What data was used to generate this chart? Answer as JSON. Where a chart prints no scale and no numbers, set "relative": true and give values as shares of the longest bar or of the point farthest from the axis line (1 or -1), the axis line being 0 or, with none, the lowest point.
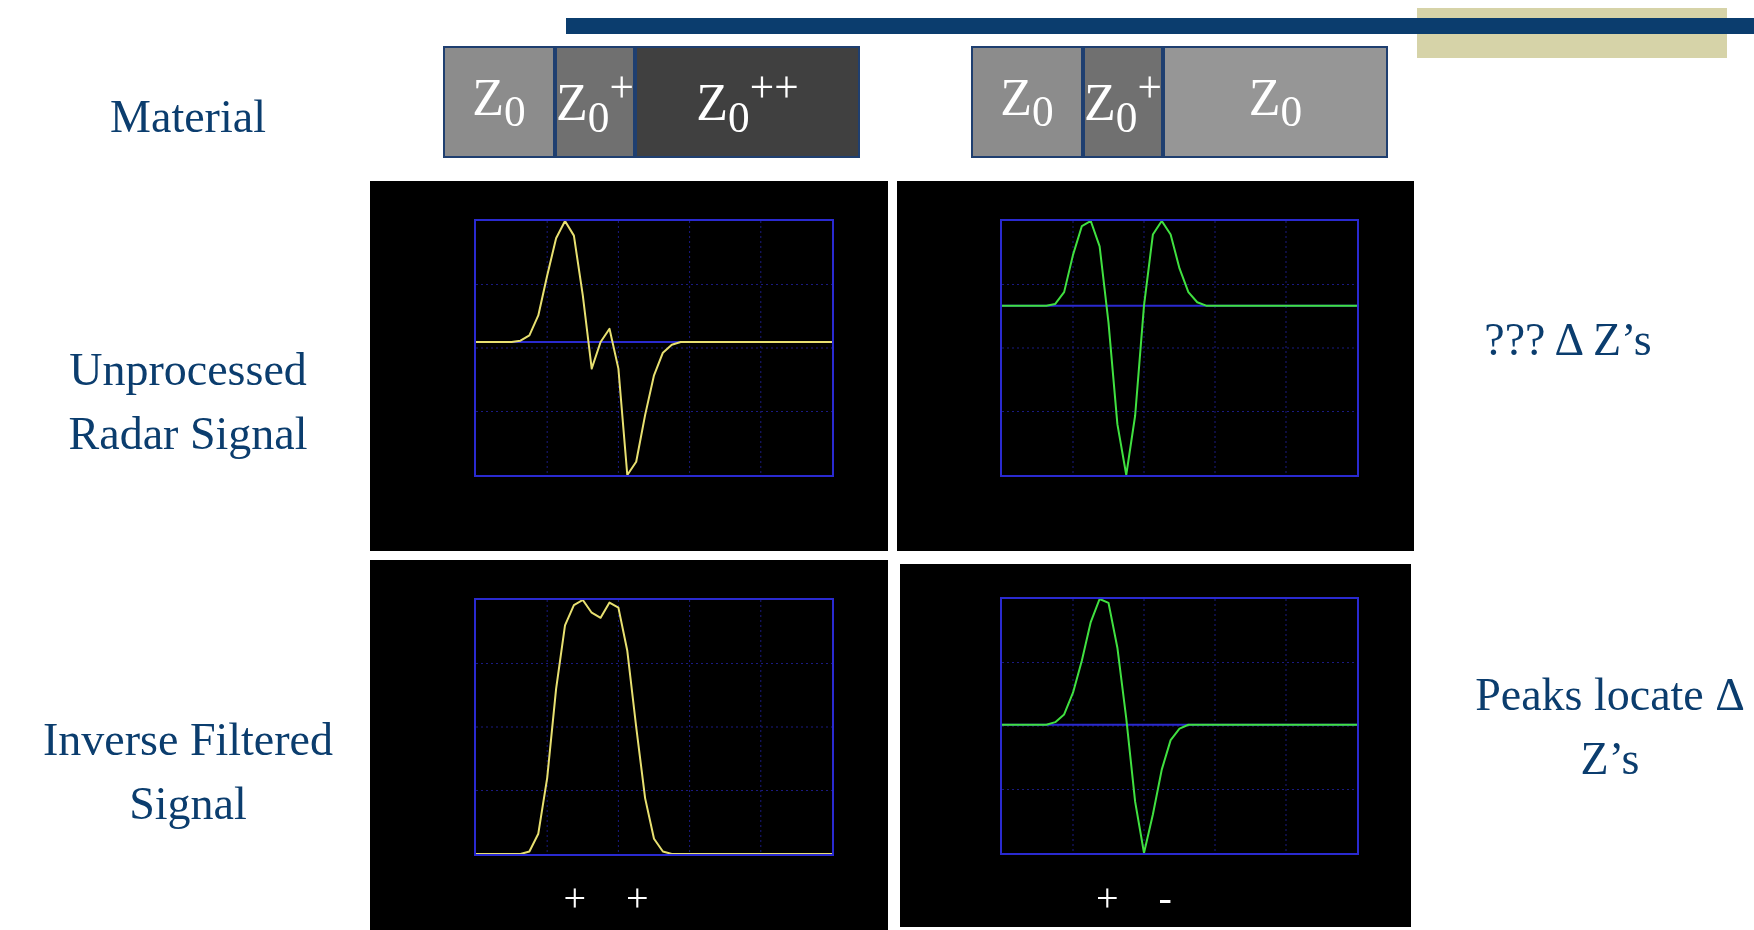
{
  "chart_data": [
    {
      "type": "other",
      "title": "Material",
      "categories": [
        "Z$_{0}$",
        "Z$_{0}$$^{+}$",
        "Z$_{0}$$^{++}$",
        "Z$_{0}$",
        "Z$_{0}$$^{+}$",
        "Z$_{0}$"
      ],
      "colors": [
        "#8c8c8c",
        "#707070",
        "#404040",
        "#8c8c8c",
        "#707070",
        "#969696"
      ]
    },
    {
      "type": "line",
      "relative": true,
      "ylabel": "Unprocessed Radar Signal",
      "grid": true,
      "tick_labels": false,
      "categories": [
        null,
        null,
        null,
        null,
        null,
        null,
        null,
        null,
        null,
        null,
        null,
        null,
        null,
        null,
        null,
        null,
        null,
        null,
        null,
        null,
        null,
        null,
        null,
        null,
        null,
        null,
        null,
        null,
        null,
        null,
        null,
        null,
        null,
        null,
        null,
        null,
        null,
        null,
        null,
        null,
        null
      ],
      "series": [
        {
          "color": "#e8e070",
          "values": [
            0,
            0,
            0,
            0,
            0,
            0.01,
            0.05,
            0.2,
            0.5,
            0.78,
            0.91,
            0.8,
            0.35,
            -0.2,
            0,
            0.1,
            -0.2,
            -1,
            -0.9,
            -0.55,
            -0.25,
            -0.08,
            -0.02,
            0,
            0,
            0,
            0,
            0,
            0,
            0,
            0,
            0,
            0,
            0,
            0,
            0,
            0,
            0,
            0,
            0,
            0
          ]
        }
      ],
      "ref_lines": [
        {
          "axis": "y",
          "value": 0,
          "color": "#2a2ad0"
        }
      ]
    },
    {
      "type": "line",
      "relative": true,
      "grid": true,
      "tick_labels": false,
      "annotations": [
        "??? Δ Z’s"
      ],
      "categories": [
        null,
        null,
        null,
        null,
        null,
        null,
        null,
        null,
        null,
        null,
        null,
        null,
        null,
        null,
        null,
        null,
        null,
        null,
        null,
        null,
        null,
        null,
        null,
        null,
        null,
        null,
        null,
        null,
        null,
        null,
        null,
        null,
        null,
        null,
        null,
        null,
        null,
        null,
        null,
        null,
        null
      ],
      "series": [
        {
          "color": "#40e040",
          "values": [
            0,
            0,
            0,
            0,
            0,
            0,
            0.01,
            0.08,
            0.3,
            0.47,
            0.5,
            0.35,
            -0.1,
            -0.7,
            -1,
            -0.65,
            0,
            0.42,
            0.5,
            0.42,
            0.22,
            0.08,
            0.02,
            0,
            0,
            0,
            0,
            0,
            0,
            0,
            0,
            0,
            0,
            0,
            0,
            0,
            0,
            0,
            0,
            0,
            0
          ]
        }
      ],
      "ref_lines": [
        {
          "axis": "y",
          "value": 0,
          "color": "#2a2ad0"
        }
      ]
    },
    {
      "type": "line",
      "relative": true,
      "ylabel": "Inverse Filtered Signal",
      "grid": true,
      "tick_labels": false,
      "annotations": [
        "+ +"
      ],
      "categories": [
        null,
        null,
        null,
        null,
        null,
        null,
        null,
        null,
        null,
        null,
        null,
        null,
        null,
        null,
        null,
        null,
        null,
        null,
        null,
        null,
        null,
        null,
        null,
        null,
        null,
        null,
        null,
        null,
        null,
        null,
        null,
        null,
        null,
        null,
        null,
        null,
        null,
        null,
        null,
        null,
        null
      ],
      "series": [
        {
          "color": "#e8e070",
          "values": [
            0,
            0,
            0,
            0,
            0,
            0,
            0.01,
            0.08,
            0.3,
            0.65,
            0.9,
            0.98,
            1,
            0.95,
            0.93,
            0.99,
            0.97,
            0.8,
            0.5,
            0.22,
            0.06,
            0.01,
            0,
            0,
            0,
            0,
            0,
            0,
            0,
            0,
            0,
            0,
            0,
            0,
            0,
            0,
            0,
            0,
            0,
            0,
            0
          ]
        }
      ]
    },
    {
      "type": "line",
      "relative": true,
      "grid": true,
      "tick_labels": false,
      "annotations": [
        "+ -",
        "Peaks locate Δ Z’s"
      ],
      "categories": [
        null,
        null,
        null,
        null,
        null,
        null,
        null,
        null,
        null,
        null,
        null,
        null,
        null,
        null,
        null,
        null,
        null,
        null,
        null,
        null,
        null,
        null,
        null,
        null,
        null,
        null,
        null,
        null,
        null,
        null,
        null,
        null,
        null,
        null,
        null,
        null,
        null,
        null,
        null,
        null,
        null
      ],
      "series": [
        {
          "color": "#40e040",
          "values": [
            0,
            0,
            0,
            0,
            0,
            0,
            0.02,
            0.08,
            0.25,
            0.5,
            0.8,
            0.98,
            0.95,
            0.6,
            0.05,
            -0.6,
            -1,
            -0.7,
            -0.35,
            -0.12,
            -0.03,
            0,
            0,
            0,
            0,
            0,
            0,
            0,
            0,
            0,
            0,
            0,
            0,
            0,
            0,
            0,
            0,
            0,
            0,
            0,
            0
          ]
        }
      ],
      "ref_lines": [
        {
          "axis": "y",
          "value": 0,
          "color": "#2a2ad0"
        }
      ]
    }
  ]
}
